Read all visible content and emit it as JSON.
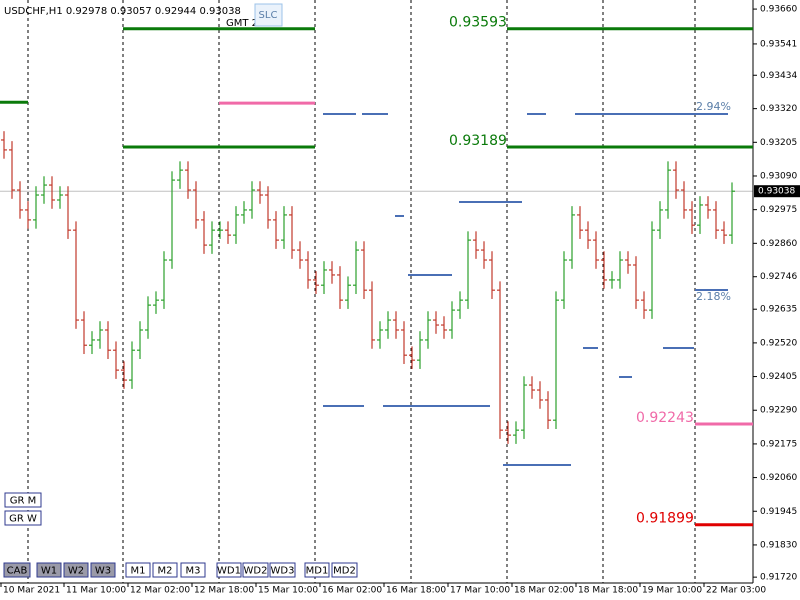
{
  "chart_data": {
    "type": "ohlc",
    "title": "USDCHF,H1  0.92978 0.93057 0.92944 0.93038",
    "annotation": "GMT 2",
    "button_label": "SLC",
    "up_color": "#2ca02c",
    "down_color": "#c0392b",
    "ylim": [
      0.917,
      0.93691
    ],
    "yticks": [
      {
        "value": 0.9366,
        "label": "0.93660"
      },
      {
        "value": 0.93541,
        "label": "0.93541"
      },
      {
        "value": 0.93434,
        "label": "0.93434"
      },
      {
        "value": 0.9332,
        "label": "0.93320"
      },
      {
        "value": 0.93205,
        "label": "0.93205"
      },
      {
        "value": 0.9309,
        "label": "0.93090"
      },
      {
        "value": 0.92975,
        "label": "0.92975"
      },
      {
        "value": 0.9286,
        "label": "0.92860"
      },
      {
        "value": 0.92746,
        "label": "0.92746"
      },
      {
        "value": 0.92635,
        "label": "0.92635"
      },
      {
        "value": 0.9252,
        "label": "0.92520"
      },
      {
        "value": 0.92405,
        "label": "0.92405"
      },
      {
        "value": 0.9229,
        "label": "0.92290"
      },
      {
        "value": 0.92175,
        "label": "0.92175"
      },
      {
        "value": 0.9206,
        "label": "0.92060"
      },
      {
        "value": 0.91945,
        "label": "0.91945"
      },
      {
        "value": 0.9183,
        "label": "0.91830"
      },
      {
        "value": 0.9172,
        "label": "0.91720"
      }
    ],
    "last_price": 0.93038,
    "x_labels": [
      "10 Mar 2021",
      "11 Mar 10:00",
      "12 Mar 02:00",
      "12 Mar 18:00",
      "15 Mar 10:00",
      "16 Mar 02:00",
      "16 Mar 18:00",
      "17 Mar 10:00",
      "18 Mar 02:00",
      "18 Mar 18:00",
      "19 Mar 10:00",
      "22 Mar 03:00"
    ],
    "levels": [
      {
        "value": 0.93593,
        "label": "0.93593",
        "color": "#0a7a0a"
      },
      {
        "value": 0.93189,
        "label": "0.93189",
        "color": "#0a7a0a"
      },
      {
        "value": 0.92243,
        "label": "0.92243",
        "color": "#f06aa8"
      },
      {
        "value": 0.91899,
        "label": "0.91899",
        "color": "#e00000"
      },
      {
        "value": 0.93339,
        "color": "#f06aa8"
      },
      {
        "value": 0.93342,
        "color": "#0a7a0a"
      }
    ],
    "notes": [
      "2.94%",
      "2.18%"
    ],
    "buttons": [
      "GR M",
      "GR W",
      "CAB",
      "W1",
      "W2",
      "W3",
      "M1",
      "M2",
      "M3",
      "WD1",
      "WD2",
      "WD3",
      "MD1",
      "MD2"
    ],
    "open": [
      0.93213,
      0.93179,
      0.93042,
      0.92974,
      0.9294,
      0.93025,
      0.93059,
      0.93008,
      0.93025,
      0.92905,
      0.92598,
      0.92512,
      0.9253,
      0.92564,
      0.92495,
      0.92427,
      0.92393,
      0.92495,
      0.92564,
      0.92649,
      0.92666,
      0.92803,
      0.93076,
      0.9311,
      0.93042,
      0.9294,
      0.92854,
      0.92905,
      0.92905,
      0.92888,
      0.92957,
      0.92974,
      0.93042,
      0.93025,
      0.9294,
      0.92871,
      0.92957,
      0.92837,
      0.92803,
      0.92735,
      0.92717,
      0.92769,
      0.92752,
      0.92666,
      0.92717,
      0.92837,
      0.927,
      0.9253,
      0.92564,
      0.92598,
      0.92564,
      0.92478,
      0.92461,
      0.9253,
      0.92598,
      0.92581,
      0.92564,
      0.92632,
      0.92666,
      0.92871,
      0.92837,
      0.92803,
      0.927,
      0.92222,
      0.92205,
      0.92222,
      0.92376,
      0.92359,
      0.92325,
      0.92256,
      0.92666,
      0.92803,
      0.92957,
      0.92905,
      0.92871,
      0.92803,
      0.92735,
      0.92735,
      0.92803,
      0.92786,
      0.92666,
      0.92632,
      0.92905,
      0.92974,
      0.9311,
      0.93042,
      0.92974,
      0.92922,
      0.92991,
      0.92974,
      0.92905,
      0.92888
    ],
    "high": [
      0.93243,
      0.93209,
      0.93072,
      0.93004,
      0.93055,
      0.93089,
      0.93089,
      0.93055,
      0.93055,
      0.92935,
      0.92628,
      0.9256,
      0.92594,
      0.92594,
      0.92525,
      0.92457,
      0.92525,
      0.92594,
      0.92679,
      0.92696,
      0.92833,
      0.93106,
      0.9314,
      0.9314,
      0.93072,
      0.9297,
      0.92935,
      0.92935,
      0.92935,
      0.92987,
      0.93004,
      0.93072,
      0.93072,
      0.93055,
      0.9297,
      0.92987,
      0.92987,
      0.92867,
      0.92833,
      0.92765,
      0.92799,
      0.92799,
      0.92782,
      0.92747,
      0.92867,
      0.92867,
      0.9273,
      0.92594,
      0.92628,
      0.92628,
      0.92594,
      0.92508,
      0.9256,
      0.92628,
      0.92628,
      0.92611,
      0.92662,
      0.92696,
      0.92901,
      0.92901,
      0.92867,
      0.92833,
      0.9273,
      0.92252,
      0.92252,
      0.92406,
      0.92406,
      0.92389,
      0.92355,
      0.92696,
      0.92833,
      0.92987,
      0.92987,
      0.92935,
      0.92901,
      0.92833,
      0.92765,
      0.92833,
      0.92833,
      0.92816,
      0.92696,
      0.92935,
      0.93004,
      0.9314,
      0.9314,
      0.93072,
      0.93004,
      0.93021,
      0.93021,
      0.93004,
      0.92935,
      0.93068
    ],
    "low": [
      0.93149,
      0.93012,
      0.92944,
      0.9291,
      0.9291,
      0.92995,
      0.92978,
      0.92978,
      0.92875,
      0.92568,
      0.92482,
      0.92482,
      0.925,
      0.92465,
      0.92397,
      0.92363,
      0.92363,
      0.92465,
      0.92534,
      0.92619,
      0.92636,
      0.92773,
      0.93046,
      0.93012,
      0.9291,
      0.92824,
      0.92824,
      0.92875,
      0.92858,
      0.92858,
      0.92927,
      0.92944,
      0.92995,
      0.9291,
      0.92841,
      0.92841,
      0.92807,
      0.92773,
      0.92705,
      0.92687,
      0.92687,
      0.92722,
      0.92636,
      0.92636,
      0.92687,
      0.9267,
      0.925,
      0.925,
      0.92534,
      0.92534,
      0.92448,
      0.92431,
      0.92431,
      0.925,
      0.92551,
      0.92534,
      0.92534,
      0.92602,
      0.92636,
      0.92807,
      0.92773,
      0.9267,
      0.92192,
      0.92175,
      0.92175,
      0.92192,
      0.92329,
      0.92295,
      0.92226,
      0.92226,
      0.92636,
      0.92773,
      0.92875,
      0.92841,
      0.92773,
      0.92705,
      0.92705,
      0.92705,
      0.92756,
      0.92636,
      0.92602,
      0.92602,
      0.92875,
      0.92944,
      0.93012,
      0.92944,
      0.92892,
      0.92892,
      0.92944,
      0.92875,
      0.92858,
      0.92858
    ],
    "close": [
      0.93179,
      0.93042,
      0.92974,
      0.9294,
      0.93025,
      0.93059,
      0.93008,
      0.93025,
      0.92905,
      0.92598,
      0.92512,
      0.9253,
      0.92564,
      0.92495,
      0.92427,
      0.92393,
      0.92495,
      0.92564,
      0.92649,
      0.92666,
      0.92803,
      0.93076,
      0.9311,
      0.93042,
      0.9294,
      0.92854,
      0.92905,
      0.92905,
      0.92888,
      0.92957,
      0.92974,
      0.93042,
      0.93025,
      0.9294,
      0.92871,
      0.92957,
      0.92837,
      0.92803,
      0.92735,
      0.92717,
      0.92769,
      0.92752,
      0.92666,
      0.92717,
      0.92837,
      0.927,
      0.9253,
      0.92564,
      0.92598,
      0.92564,
      0.92478,
      0.92461,
      0.9253,
      0.92598,
      0.92581,
      0.92564,
      0.92632,
      0.92666,
      0.92871,
      0.92837,
      0.92803,
      0.927,
      0.92222,
      0.92205,
      0.92222,
      0.92376,
      0.92359,
      0.92325,
      0.92256,
      0.92666,
      0.92803,
      0.92957,
      0.92905,
      0.92871,
      0.92803,
      0.92735,
      0.92735,
      0.92803,
      0.92786,
      0.92666,
      0.92632,
      0.92905,
      0.92974,
      0.9311,
      0.93042,
      0.92974,
      0.92922,
      0.92991,
      0.92974,
      0.92905,
      0.92888,
      0.93038
    ]
  }
}
